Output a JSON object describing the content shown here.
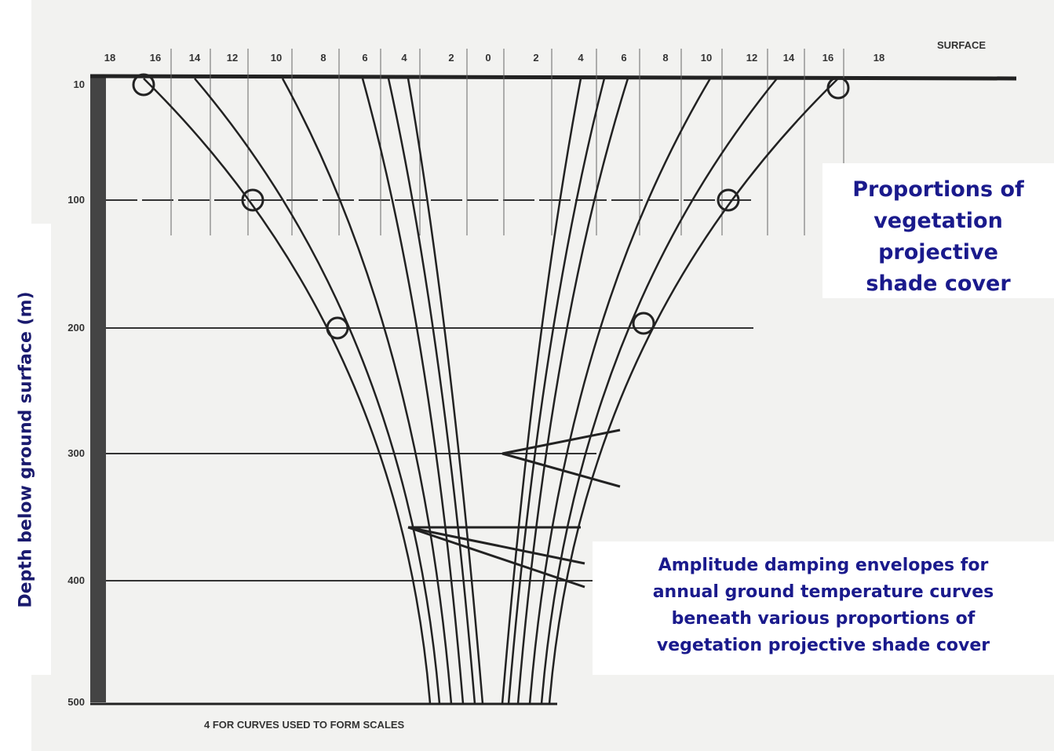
{
  "figure": {
    "scale_labels": [
      "18",
      "16",
      "14",
      "12",
      "10",
      "8",
      "6",
      "4",
      "2",
      "0",
      "2",
      "4",
      "6",
      "8",
      "10",
      "12",
      "14",
      "16",
      "18"
    ],
    "surface_label": "SURFACE",
    "depth_labels": [
      "10",
      "100",
      "200",
      "300",
      "400",
      "500"
    ],
    "axis_label": "Depth below ground surface (m)",
    "caption": "4  FOR CURVES USED TO FORM SCALES"
  },
  "annotations": {
    "shade_cover": [
      "Proportions of",
      "vegetation",
      "projective",
      "shade cover"
    ],
    "damping": [
      "Amplitude damping envelopes for",
      "annual ground temperature curves",
      "beneath various proportions of",
      "vegetation projective shade cover"
    ]
  }
}
